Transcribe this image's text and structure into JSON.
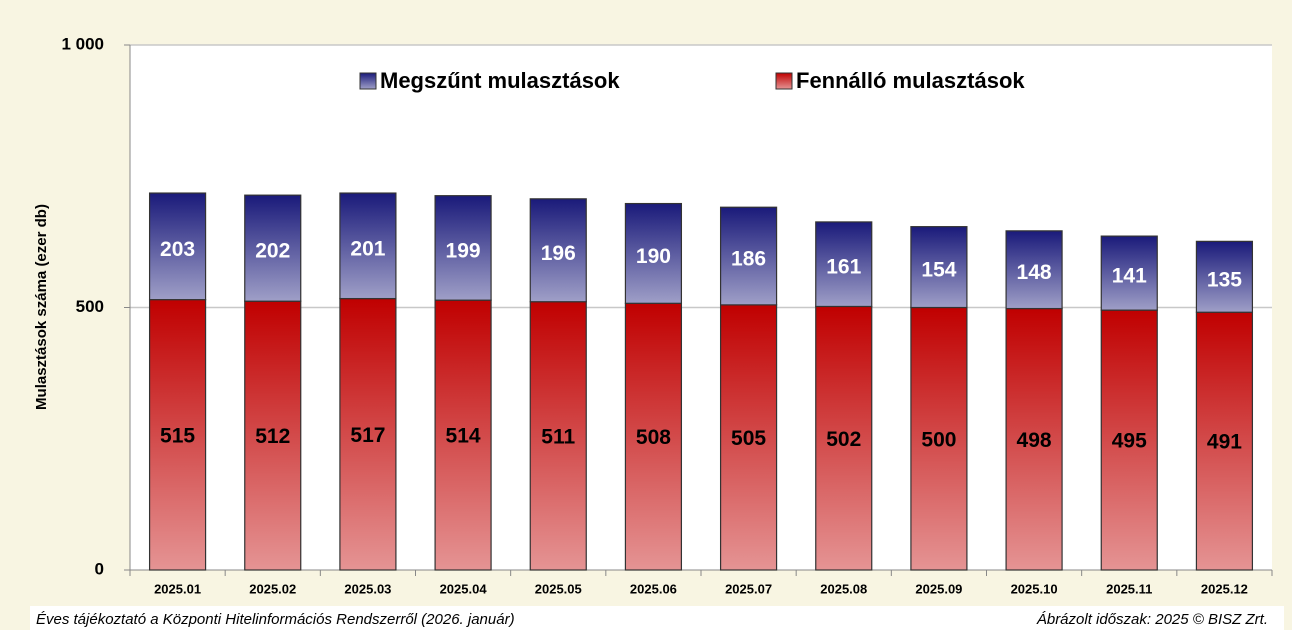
{
  "chart_data": {
    "type": "stacked_bar",
    "y_label": "Mulasztások száma (ezer db)",
    "categories": [
      "2025.01",
      "2025.02",
      "2025.03",
      "2025.04",
      "2025.05",
      "2025.06",
      "2025.07",
      "2025.08",
      "2025.09",
      "2025.10",
      "2025.11",
      "2025.12"
    ],
    "series": [
      {
        "name": "Fennálló mulasztások",
        "color": "#c00000",
        "values": [
          515,
          512,
          517,
          514,
          511,
          508,
          505,
          502,
          500,
          498,
          495,
          491
        ]
      },
      {
        "name": "Megszűnt mulasztások",
        "color": "#1a1a7a",
        "values": [
          203,
          202,
          201,
          199,
          196,
          190,
          186,
          161,
          154,
          148,
          141,
          135
        ]
      }
    ],
    "ylim": [
      0,
      1000
    ],
    "yticks": [
      0,
      500,
      {
        "value": 1000,
        "label": "1 000"
      }
    ],
    "grid": true,
    "footer_left": "Éves tájékoztató a Központi Hitelinformációs Rendszerről (2026. január)",
    "footer_right": "Ábrázolt időszak: 2025 © BISZ Zrt."
  }
}
